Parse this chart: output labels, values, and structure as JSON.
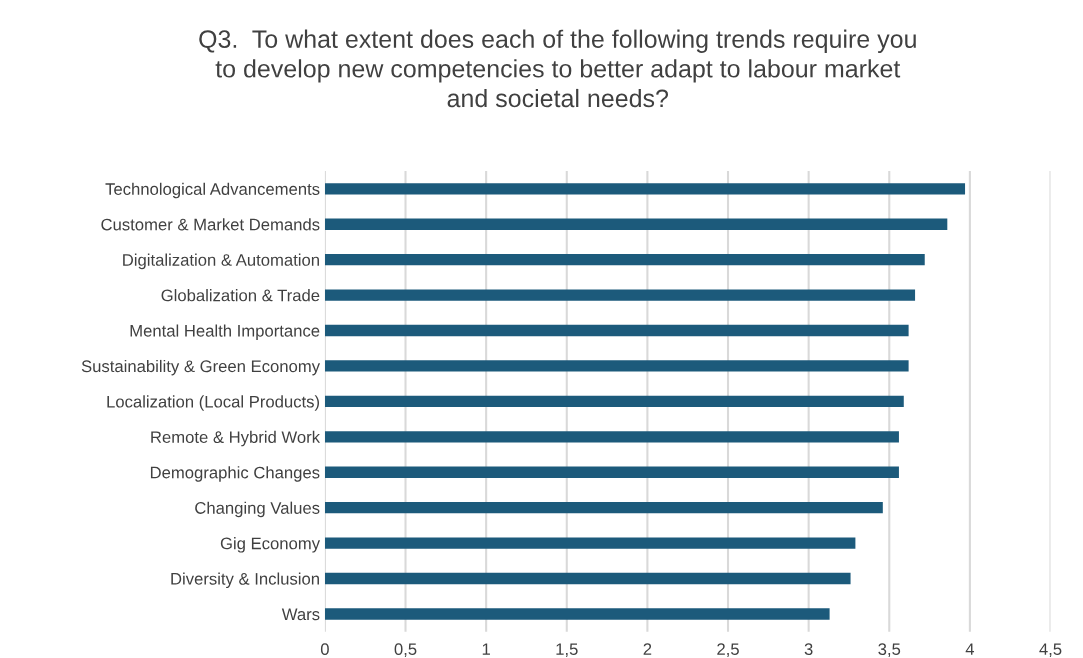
{
  "chart_data": {
    "type": "bar",
    "orientation": "horizontal",
    "title": "Q3.  To what extent does each of the following trends require you\nto develop new competencies to better adapt to labour market\nand societal needs?",
    "categories": [
      "Technological Advancements",
      "Customer & Market Demands",
      "Digitalization & Automation",
      "Globalization & Trade",
      "Mental Health Importance",
      "Sustainability & Green Economy",
      "Localization (Local Products)",
      "Remote & Hybrid Work",
      "Demographic Changes",
      "Changing Values",
      "Gig Economy",
      "Diversity & Inclusion",
      "Wars"
    ],
    "values": [
      3.97,
      3.86,
      3.72,
      3.66,
      3.62,
      3.62,
      3.59,
      3.56,
      3.56,
      3.46,
      3.29,
      3.26,
      3.13
    ],
    "color": "#1c5a7b",
    "xlim": [
      0,
      4.5
    ],
    "xticks": [
      0,
      {
        "value": 0.5,
        "label": "0,5"
      },
      1,
      {
        "value": 1.5,
        "label": "1,5"
      },
      2,
      {
        "value": 2.5,
        "label": "2,5"
      },
      3,
      {
        "value": 3.5,
        "label": "3,5"
      },
      4,
      {
        "value": 4.5,
        "label": "4,5"
      }
    ],
    "grid": "x"
  }
}
